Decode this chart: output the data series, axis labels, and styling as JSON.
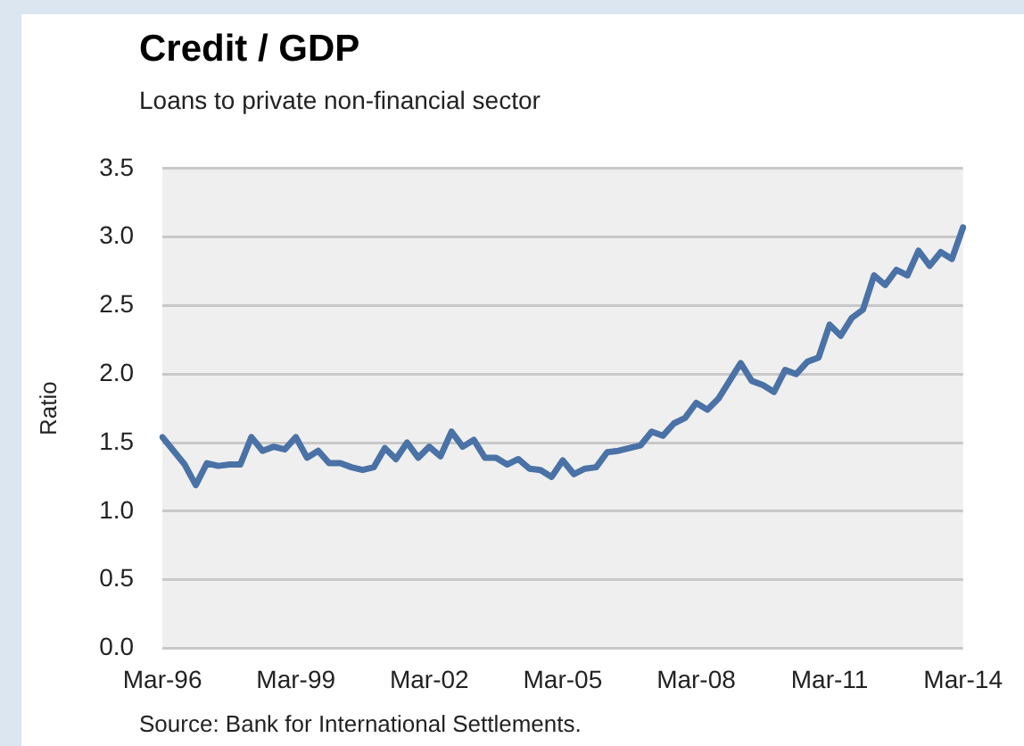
{
  "chart_data": {
    "type": "line",
    "title": "Credit / GDP",
    "subtitle": "Loans to private non-financial sector",
    "ylabel": "Ratio",
    "categories": [
      "Mar-96",
      null,
      null,
      null,
      null,
      null,
      null,
      null,
      null,
      null,
      null,
      null,
      "Mar-99",
      null,
      null,
      null,
      null,
      null,
      null,
      null,
      null,
      null,
      null,
      null,
      "Mar-02",
      null,
      null,
      null,
      null,
      null,
      null,
      null,
      null,
      null,
      null,
      null,
      "Mar-05",
      null,
      null,
      null,
      null,
      null,
      null,
      null,
      null,
      null,
      null,
      null,
      "Mar-08",
      null,
      null,
      null,
      null,
      null,
      null,
      null,
      null,
      null,
      null,
      null,
      "Mar-11",
      null,
      null,
      null,
      null,
      null,
      null,
      null,
      null,
      null,
      null,
      null,
      "Mar-14"
    ],
    "series": [
      {
        "color": "#4a72a6",
        "values": [
          1.54,
          1.44,
          1.34,
          1.19,
          1.35,
          1.33,
          1.34,
          1.34,
          1.54,
          1.44,
          1.47,
          1.45,
          1.54,
          1.39,
          1.44,
          1.35,
          1.35,
          1.32,
          1.3,
          1.32,
          1.46,
          1.38,
          1.5,
          1.39,
          1.47,
          1.4,
          1.58,
          1.47,
          1.52,
          1.39,
          1.39,
          1.34,
          1.38,
          1.31,
          1.3,
          1.25,
          1.37,
          1.27,
          1.31,
          1.32,
          1.43,
          1.44,
          1.46,
          1.48,
          1.58,
          1.55,
          1.64,
          1.68,
          1.79,
          1.74,
          1.82,
          1.95,
          2.08,
          1.95,
          1.92,
          1.87,
          2.03,
          2.0,
          2.09,
          2.12,
          2.36,
          2.28,
          2.41,
          2.47,
          2.72,
          2.65,
          2.76,
          2.72,
          2.9,
          2.79,
          2.89,
          2.84,
          3.07
        ]
      }
    ],
    "ylim": [
      0,
      3.5
    ],
    "yticks": [
      {
        "value": 0,
        "label": "0.0"
      },
      0.5,
      {
        "value": 1,
        "label": "1.0"
      },
      1.5,
      {
        "value": 2,
        "label": "2.0"
      },
      2.5,
      {
        "value": 3,
        "label": "3.0"
      },
      3.5
    ],
    "grid": "y",
    "legend": false,
    "marker": "none",
    "line_style": "solid",
    "annotations": [
      "Source: Bank for International Settlements."
    ]
  }
}
